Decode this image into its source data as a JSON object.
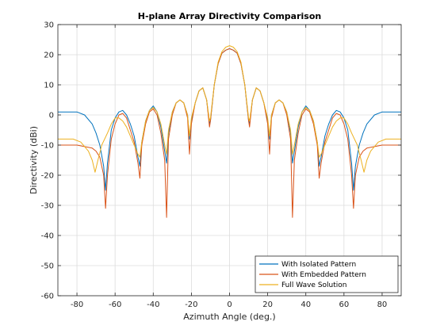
{
  "chart_data": {
    "type": "line",
    "title": "H-plane Array Directivity Comparison",
    "xlabel": "Azimuth Angle (deg.)",
    "ylabel": "Directivity (dBi)",
    "xlim": [
      -90,
      90
    ],
    "ylim": [
      -60,
      30
    ],
    "xticks": [
      -80,
      -60,
      -40,
      -20,
      0,
      20,
      40,
      60,
      80
    ],
    "yticks": [
      -60,
      -50,
      -40,
      -30,
      -20,
      -10,
      0,
      10,
      20,
      30
    ],
    "grid": true,
    "legend_position": "bottom-right",
    "series": [
      {
        "name": "With Isolated Pattern",
        "color": "#0072BD",
        "x": [
          -90,
          -80,
          -76,
          -72,
          -70,
          -68,
          -66,
          -65,
          -64,
          -62,
          -60,
          -58,
          -56,
          -54,
          -52,
          -50,
          -48,
          -47,
          -46,
          -44,
          -42,
          -40,
          -38,
          -36,
          -34,
          -33,
          -32,
          -30,
          -28,
          -26,
          -24,
          -22,
          -21,
          -20,
          -18,
          -16,
          -14,
          -12,
          -10.5,
          -10,
          -8,
          -6,
          -4,
          -2,
          0,
          2,
          4,
          6,
          8,
          10,
          10.5,
          12,
          14,
          16,
          18,
          20,
          21,
          22,
          24,
          26,
          28,
          30,
          32,
          33,
          34,
          36,
          38,
          40,
          42,
          44,
          46,
          47,
          48,
          50,
          52,
          54,
          56,
          58,
          60,
          62,
          64,
          65,
          66,
          68,
          70,
          72,
          76,
          80,
          90
        ],
        "y": [
          1,
          1,
          0,
          -3,
          -6,
          -10,
          -17,
          -25,
          -16,
          -5,
          -1,
          1,
          1.5,
          0,
          -3,
          -7,
          -14,
          -17,
          -9,
          -2,
          1.5,
          3,
          1,
          -4,
          -12,
          -16,
          -6,
          1,
          4,
          5,
          4,
          0,
          -8,
          -2,
          4,
          8,
          9,
          5,
          -3,
          -2,
          10,
          17,
          20.5,
          21.5,
          22,
          21.5,
          20.5,
          17,
          10,
          -2,
          -3,
          5,
          9,
          8,
          4,
          -2,
          -8,
          0,
          4,
          5,
          4,
          1,
          -6,
          -16,
          -12,
          -4,
          1,
          3,
          1.5,
          -2,
          -9,
          -17,
          -14,
          -7,
          -3,
          0,
          1.5,
          1,
          -1,
          -5,
          -16,
          -25,
          -17,
          -10,
          -6,
          -3,
          0,
          1,
          1
        ]
      },
      {
        "name": "With Embedded Pattern",
        "color": "#D95319",
        "x": [
          -90,
          -80,
          -76,
          -72,
          -70,
          -68,
          -66,
          -65,
          -64,
          -62,
          -60,
          -58,
          -56,
          -54,
          -52,
          -50,
          -48,
          -47,
          -46,
          -44,
          -42,
          -40,
          -38,
          -36,
          -34,
          -33,
          -32,
          -30,
          -28,
          -26,
          -24,
          -22,
          -21,
          -20,
          -18,
          -16,
          -14,
          -12,
          -10.5,
          -10,
          -8,
          -6,
          -4,
          -2,
          0,
          2,
          4,
          6,
          8,
          10,
          10.5,
          12,
          14,
          16,
          18,
          20,
          21,
          22,
          24,
          26,
          28,
          30,
          32,
          33,
          34,
          36,
          38,
          40,
          42,
          44,
          46,
          47,
          48,
          50,
          52,
          54,
          56,
          58,
          60,
          62,
          64,
          65,
          66,
          68,
          70,
          72,
          76,
          80,
          90
        ],
        "y": [
          -10,
          -10,
          -10.5,
          -11,
          -12,
          -14,
          -20,
          -31,
          -20,
          -8,
          -3,
          0,
          0.5,
          -1,
          -5,
          -9,
          -16,
          -21,
          -10,
          -3,
          1,
          2,
          0,
          -6,
          -15,
          -34,
          -8,
          0,
          4,
          5,
          4,
          -1,
          -13,
          -3,
          4,
          8,
          9,
          5,
          -4,
          -2,
          10,
          17,
          20.5,
          21.5,
          22,
          21.5,
          20.5,
          17,
          10,
          -2,
          -4,
          5,
          9,
          8,
          4,
          -3,
          -13,
          -1,
          4,
          5,
          4,
          0,
          -8,
          -34,
          -15,
          -6,
          0,
          2,
          1,
          -3,
          -10,
          -21,
          -16,
          -9,
          -5,
          -1,
          0.5,
          0,
          -3,
          -8,
          -20,
          -31,
          -20,
          -14,
          -12,
          -11,
          -10.5,
          -10,
          -10
        ]
      },
      {
        "name": "Full Wave Solution",
        "color": "#EDB120",
        "x": [
          -90,
          -82,
          -78,
          -74,
          -72,
          -70.5,
          -69,
          -67,
          -64,
          -62,
          -60,
          -58,
          -56,
          -54,
          -52,
          -50,
          -48,
          -47,
          -46,
          -44,
          -42,
          -40,
          -38,
          -36,
          -34,
          -33,
          -32,
          -30,
          -28,
          -26,
          -24,
          -22,
          -21,
          -20,
          -18,
          -16,
          -14,
          -12,
          -10.5,
          -10,
          -8,
          -6,
          -4,
          -2,
          0,
          2,
          4,
          6,
          8,
          10,
          10.5,
          12,
          14,
          16,
          18,
          20,
          21,
          22,
          24,
          26,
          28,
          30,
          32,
          33,
          34,
          36,
          38,
          40,
          42,
          44,
          46,
          47,
          48,
          50,
          52,
          54,
          56,
          58,
          60,
          62,
          64,
          67,
          69,
          70.5,
          72,
          74,
          78,
          82,
          90
        ],
        "y": [
          -8,
          -8,
          -9,
          -12,
          -15,
          -19,
          -15,
          -10,
          -6,
          -3,
          -1,
          -1,
          -2,
          -4,
          -7,
          -10,
          -13,
          -14,
          -9,
          -2,
          1.5,
          2.5,
          1,
          -3,
          -10,
          -13,
          -5,
          1,
          4,
          5,
          4,
          0,
          -7,
          -1,
          4,
          8,
          9,
          5,
          -2,
          -1,
          10,
          17.5,
          21,
          22.5,
          23,
          22.5,
          21,
          17.5,
          10,
          -1,
          -2,
          5,
          9,
          8,
          4,
          -1,
          -7,
          0,
          4,
          5,
          4,
          1,
          -5,
          -13,
          -10,
          -3,
          1,
          2.5,
          1.5,
          -2,
          -9,
          -14,
          -13,
          -10,
          -7,
          -4,
          -2,
          -1,
          -1,
          -3,
          -6,
          -10,
          -15,
          -19,
          -15,
          -12,
          -9,
          -8,
          -8
        ]
      }
    ]
  }
}
